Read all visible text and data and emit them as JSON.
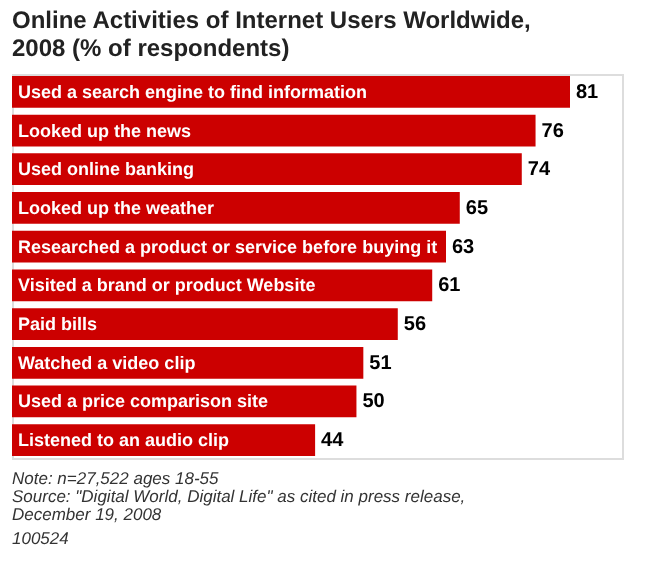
{
  "chart_data": {
    "type": "bar",
    "orientation": "horizontal",
    "title": "Online Activities of Internet Users Worldwide, 2008 (% of respondents)",
    "categories": [
      "Used a search engine to find information",
      "Looked up the news",
      "Used online banking",
      "Looked up the weather",
      "Researched a product or service before buying it",
      "Visited a brand or product Website",
      "Paid bills",
      "Watched a video clip",
      "Used a price comparison site",
      "Listened to an audio clip"
    ],
    "values": [
      81,
      76,
      74,
      65,
      63,
      61,
      56,
      51,
      50,
      44
    ],
    "color": "#cc0000",
    "data_labels": true,
    "annotations": [
      "Note: n=27,522 ages 18-55",
      "Source: \"Digital World, Digital Life\" as cited in press release, December 19, 2008",
      "100524"
    ]
  }
}
